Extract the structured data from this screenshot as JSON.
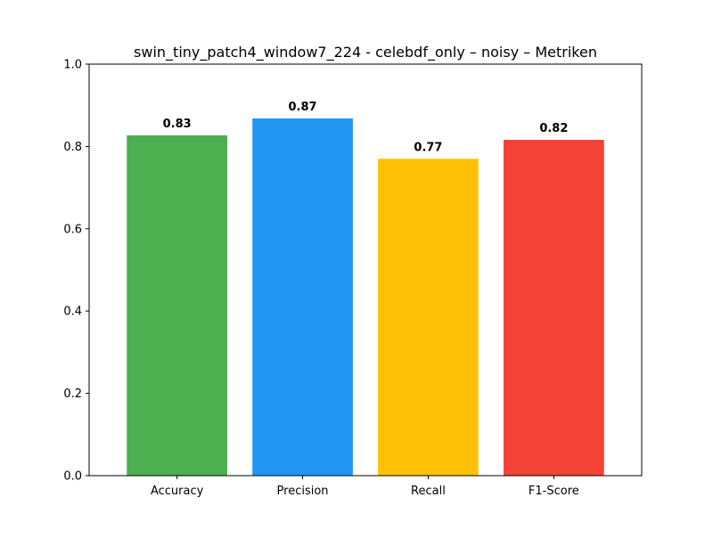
{
  "chart_data": {
    "type": "bar",
    "title": "swin_tiny_patch4_window7_224 - celebdf_only – noisy – Metriken",
    "xlabel": "",
    "ylabel": "",
    "categories": [
      "Accuracy",
      "Precision",
      "Recall",
      "F1-Score"
    ],
    "values": [
      0.827,
      0.868,
      0.77,
      0.816
    ],
    "value_labels": [
      "0.83",
      "0.87",
      "0.77",
      "0.82"
    ],
    "colors": [
      "#4caf50",
      "#2196f3",
      "#ffc107",
      "#f44336"
    ],
    "ylim": [
      0,
      1.0
    ],
    "yticks": [
      0.0,
      0.2,
      0.4,
      0.6,
      0.8,
      1.0
    ],
    "ytick_labels": [
      "0.0",
      "0.2",
      "0.4",
      "0.6",
      "0.8",
      "1.0"
    ],
    "grid": false,
    "legend": "none"
  }
}
